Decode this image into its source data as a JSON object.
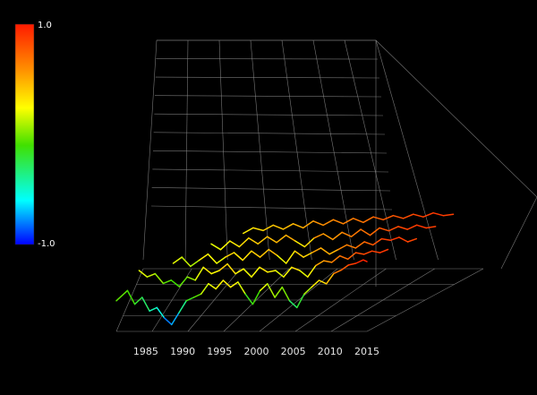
{
  "chart_data": {
    "type": "line",
    "title": "",
    "x_ticks": [
      "1985",
      "1990",
      "1995",
      "2000",
      "2005",
      "2010",
      "2015"
    ],
    "x_range": [
      1981,
      2015
    ],
    "colorbar": {
      "max_label": "1.0",
      "min_label": "-1.0",
      "range": [
        -1.0,
        1.0
      ],
      "colors": [
        "#ff1a00",
        "#ff8c00",
        "#ffff00",
        "#40e000",
        "#00ffff",
        "#0000ff"
      ]
    },
    "grid": true,
    "series": [
      {
        "values": [
          [
            1981.0,
            -0.2
          ],
          [
            1982.5,
            0.1
          ],
          [
            1983.5,
            -0.3
          ],
          [
            1984.5,
            -0.1
          ],
          [
            1985.5,
            -0.5
          ],
          [
            1986.5,
            -0.4
          ],
          [
            1987.5,
            -0.7
          ],
          [
            1988.5,
            -0.9
          ],
          [
            1989.5,
            -0.55
          ],
          [
            1990.5,
            -0.2
          ],
          [
            1991.5,
            -0.1
          ],
          [
            1992.5,
            0.0
          ],
          [
            1993.5,
            0.3
          ],
          [
            1994.5,
            0.15
          ],
          [
            1995.5,
            0.4
          ],
          [
            1996.5,
            0.2
          ],
          [
            1997.5,
            0.35
          ],
          [
            1998.5,
            0.0
          ],
          [
            1999.5,
            -0.3
          ],
          [
            2000.5,
            0.1
          ],
          [
            2001.5,
            0.3
          ],
          [
            2002.5,
            -0.1
          ],
          [
            2003.5,
            0.2
          ],
          [
            2004.5,
            -0.2
          ],
          [
            2005.5,
            -0.4
          ],
          [
            2006.5,
            0.0
          ],
          [
            2007.5,
            0.2
          ],
          [
            2008.5,
            0.4
          ],
          [
            2009.5,
            0.3
          ],
          [
            2010.5,
            0.6
          ],
          [
            2011.5,
            0.7
          ],
          [
            2012.5,
            0.85
          ],
          [
            2013.5,
            0.9
          ],
          [
            2014.5,
            1.0
          ],
          [
            2015.0,
            0.95
          ]
        ]
      },
      {
        "values": [
          [
            1983.0,
            0.3
          ],
          [
            1984.0,
            0.1
          ],
          [
            1985.0,
            0.2
          ],
          [
            1986.0,
            -0.1
          ],
          [
            1987.0,
            0.0
          ],
          [
            1988.0,
            -0.2
          ],
          [
            1989.0,
            0.1
          ],
          [
            1990.0,
            0.0
          ],
          [
            1991.0,
            0.4
          ],
          [
            1992.0,
            0.2
          ],
          [
            1993.0,
            0.3
          ],
          [
            1994.0,
            0.5
          ],
          [
            1995.0,
            0.2
          ],
          [
            1996.0,
            0.35
          ],
          [
            1997.0,
            0.1
          ],
          [
            1998.0,
            0.4
          ],
          [
            1999.0,
            0.25
          ],
          [
            2000.0,
            0.3
          ],
          [
            2001.0,
            0.1
          ],
          [
            2002.0,
            0.4
          ],
          [
            2003.0,
            0.3
          ],
          [
            2004.0,
            0.1
          ],
          [
            2005.0,
            0.45
          ],
          [
            2006.0,
            0.6
          ],
          [
            2007.0,
            0.55
          ],
          [
            2008.0,
            0.75
          ],
          [
            2009.0,
            0.65
          ],
          [
            2010.0,
            0.85
          ],
          [
            2011.0,
            0.8
          ],
          [
            2012.0,
            0.9
          ],
          [
            2013.0,
            0.85
          ],
          [
            2014.0,
            0.95
          ]
        ]
      },
      {
        "values": [
          [
            1986.0,
            0.1
          ],
          [
            1987.0,
            0.3
          ],
          [
            1988.0,
            0.0
          ],
          [
            1989.0,
            0.2
          ],
          [
            1990.0,
            0.4
          ],
          [
            1991.0,
            0.1
          ],
          [
            1992.0,
            0.3
          ],
          [
            1993.0,
            0.45
          ],
          [
            1994.0,
            0.2
          ],
          [
            1995.0,
            0.5
          ],
          [
            1996.0,
            0.3
          ],
          [
            1997.0,
            0.55
          ],
          [
            1998.0,
            0.35
          ],
          [
            1999.0,
            0.1
          ],
          [
            2000.0,
            0.5
          ],
          [
            2001.0,
            0.3
          ],
          [
            2002.0,
            0.45
          ],
          [
            2003.0,
            0.6
          ],
          [
            2004.0,
            0.4
          ],
          [
            2005.0,
            0.55
          ],
          [
            2006.0,
            0.7
          ],
          [
            2007.0,
            0.6
          ],
          [
            2008.0,
            0.8
          ],
          [
            2009.0,
            0.7
          ],
          [
            2010.0,
            0.9
          ],
          [
            2011.0,
            0.85
          ],
          [
            2012.0,
            0.95
          ],
          [
            2013.0,
            0.8
          ],
          [
            2014.0,
            0.9
          ]
        ]
      },
      {
        "values": [
          [
            1989.0,
            0.3
          ],
          [
            1990.0,
            0.1
          ],
          [
            1991.0,
            0.4
          ],
          [
            1992.0,
            0.2
          ],
          [
            1993.0,
            0.5
          ],
          [
            1994.0,
            0.3
          ],
          [
            1995.0,
            0.55
          ],
          [
            1996.0,
            0.35
          ],
          [
            1997.0,
            0.6
          ],
          [
            1998.0,
            0.4
          ],
          [
            1999.0,
            0.2
          ],
          [
            2000.0,
            0.5
          ],
          [
            2001.0,
            0.65
          ],
          [
            2002.0,
            0.45
          ],
          [
            2003.0,
            0.7
          ],
          [
            2004.0,
            0.55
          ],
          [
            2005.0,
            0.8
          ],
          [
            2006.0,
            0.6
          ],
          [
            2007.0,
            0.85
          ],
          [
            2008.0,
            0.75
          ],
          [
            2009.0,
            0.9
          ],
          [
            2010.0,
            0.8
          ],
          [
            2011.0,
            0.95
          ],
          [
            2012.0,
            0.85
          ],
          [
            2013.0,
            0.9
          ]
        ]
      },
      {
        "values": [
          [
            1991.0,
            0.2
          ],
          [
            1992.0,
            0.4
          ],
          [
            1993.0,
            0.3
          ],
          [
            1994.0,
            0.5
          ],
          [
            1995.0,
            0.35
          ],
          [
            1996.0,
            0.55
          ],
          [
            1997.0,
            0.4
          ],
          [
            1998.0,
            0.65
          ],
          [
            1999.0,
            0.5
          ],
          [
            2000.0,
            0.7
          ],
          [
            2001.0,
            0.55
          ],
          [
            2002.0,
            0.75
          ],
          [
            2003.0,
            0.6
          ],
          [
            2004.0,
            0.8
          ],
          [
            2005.0,
            0.7
          ],
          [
            2006.0,
            0.85
          ],
          [
            2007.0,
            0.75
          ],
          [
            2008.0,
            0.9
          ],
          [
            2009.0,
            0.8
          ],
          [
            2010.0,
            0.95
          ],
          [
            2011.0,
            0.85
          ],
          [
            2012.0,
            0.9
          ]
        ]
      }
    ]
  }
}
